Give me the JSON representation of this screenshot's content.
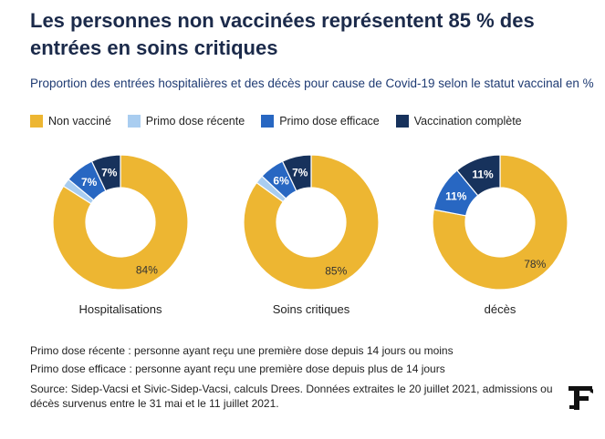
{
  "title": "Les personnes non vaccinées représentent 85 % des entrées en soins critiques",
  "subtitle": "Proportion des entrées hospitalières et des décès pour cause de Covid-19 selon le statut vaccinal en %",
  "colors": {
    "non_vaccine": "#edb632",
    "primo_recente": "#a9cdf0",
    "primo_efficace": "#2867c2",
    "vaccination_complete": "#17325c"
  },
  "chart_data": {
    "type": "pie",
    "variant": "donut",
    "legend_position": "top",
    "series_names": [
      "Non vacciné",
      "Primo dose récente",
      "Primo dose efficace",
      "Vaccination complète"
    ],
    "charts": [
      {
        "category": "Hospitalisations",
        "values": [
          84,
          2,
          7,
          7
        ],
        "labels": [
          "84%",
          "",
          "7%",
          "7%"
        ]
      },
      {
        "category": "Soins critiques",
        "values": [
          85,
          2,
          6,
          7
        ],
        "labels": [
          "85%",
          "",
          "6%",
          "7%"
        ]
      },
      {
        "category": "décès",
        "values": [
          78,
          0,
          11,
          11
        ],
        "labels": [
          "78%",
          "",
          "11%",
          "11%"
        ]
      }
    ]
  },
  "notes": {
    "note1": "Primo dose récente : personne ayant reçu une première dose depuis 14 jours ou moins",
    "note2": "Primo dose efficace : personne ayant reçu une première dose depuis plus de 14 jours",
    "source_line1": "Source: Sidep-Vacsi et Sivic-Sidep-Vacsi, calculs Drees. Données extraites le 20 juillet 2021, admissions ou",
    "source_line2": "décès survenus entre le 31 mai et le 11 juillet 2021."
  },
  "logo": {
    "icon": "le-figaro-logo",
    "letter": "F"
  }
}
